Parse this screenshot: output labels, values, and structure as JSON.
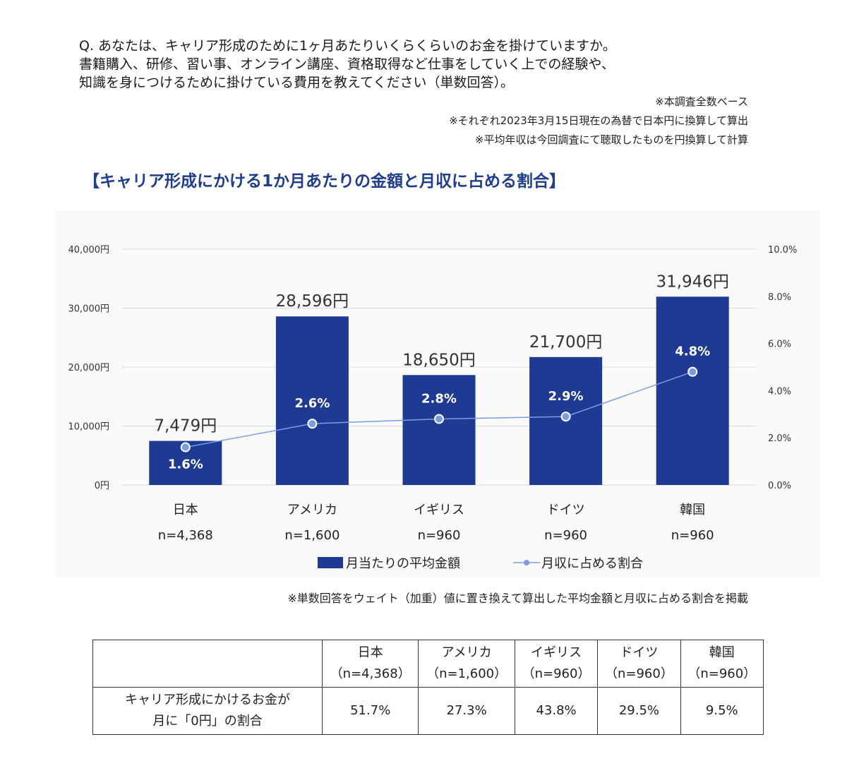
{
  "question": {
    "lines": [
      "Q. あなたは、キャリア形成のために1ヶ月あたりいくらくらいのお金を掛けていますか。",
      "書籍購入、研修、習い事、オンライン講座、資格取得など仕事をしていく上での経験や、",
      "知識を身につけるために掛けている費用を教えてください（単数回答）。"
    ]
  },
  "notes": [
    "※本調査全数ベース",
    "※それぞれ2023年3月15日現在の為替で日本円に換算して算出",
    "※平均年収は今回調査にて聴取したものを円換算して計算"
  ],
  "chart_title": "【キャリア形成にかける1か月あたりの金額と月収に占める割合】",
  "colors": {
    "bar": "#1e3a93",
    "line": "#7b9be8",
    "title": "#1f3d8f",
    "grid": "#d9d9d9"
  },
  "chart_data": {
    "type": "bar",
    "categories": [
      "日本",
      "アメリカ",
      "イギリス",
      "ドイツ",
      "韓国"
    ],
    "sample_sizes": [
      "n=4,368",
      "n=1,600",
      "n=960",
      "n=960",
      "n=960"
    ],
    "series": [
      {
        "name": "月当たりの平均金額",
        "type": "bar",
        "axis": "left",
        "values": [
          7479,
          28596,
          18650,
          21700,
          31946
        ],
        "labels": [
          "7,479円",
          "28,596円",
          "18,650円",
          "21,700円",
          "31,946円"
        ]
      },
      {
        "name": "月収に占める割合",
        "type": "line",
        "axis": "right",
        "values": [
          1.6,
          2.6,
          2.8,
          2.9,
          4.8
        ],
        "labels": [
          "1.6%",
          "2.6%",
          "2.8%",
          "2.9%",
          "4.8%"
        ]
      }
    ],
    "y_left": {
      "ylim": [
        0,
        40000
      ],
      "ticks": [
        0,
        10000,
        20000,
        30000,
        40000
      ],
      "tick_labels": [
        "0円",
        "10,000円",
        "20,000円",
        "30,000円",
        "40,000円"
      ]
    },
    "y_right": {
      "ylim": [
        0,
        10
      ],
      "ticks": [
        0,
        2,
        4,
        6,
        8,
        10
      ],
      "tick_labels": [
        "0.0%",
        "2.0%",
        "4.0%",
        "6.0%",
        "8.0%",
        "10.0%"
      ]
    },
    "grid": true,
    "legend": "bottom"
  },
  "footnote": "※単数回答をウェイト（加重）値に置き換えて算出した平均金額と月収に占める割合を掲載",
  "table": {
    "headers": [
      {
        "name": "日本",
        "n": "（n=4,368）"
      },
      {
        "name": "アメリカ",
        "n": "（n=1,600）"
      },
      {
        "name": "イギリス",
        "n": "（n=960）"
      },
      {
        "name": "ドイツ",
        "n": "（n=960）"
      },
      {
        "name": "韓国",
        "n": "（n=960）"
      }
    ],
    "row_label_line1": "キャリア形成にかけるお金が",
    "row_label_line2": "月に「0円」の割合",
    "values": [
      "51.7%",
      "27.3%",
      "43.8%",
      "29.5%",
      "9.5%"
    ]
  }
}
